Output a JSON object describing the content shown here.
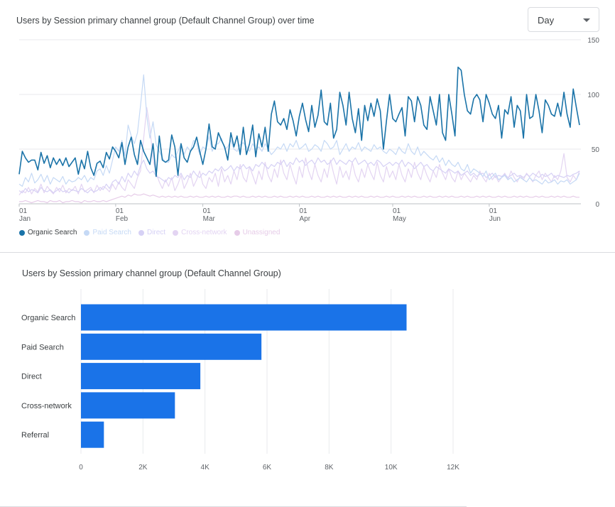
{
  "line_card": {
    "title": "Users by Session primary channel group (Default Channel Group) over time",
    "granularity_label": "Day"
  },
  "bar_card": {
    "title": "Users by Session primary channel group (Default Channel Group)"
  },
  "chart_data": [
    {
      "type": "line",
      "title": "Users by Session primary channel group (Default Channel Group) over time",
      "x_tick_labels": [
        {
          "day": "01",
          "month": "Jan"
        },
        {
          "day": "01",
          "month": "Feb"
        },
        {
          "day": "01",
          "month": "Mar"
        },
        {
          "day": "01",
          "month": "Apr"
        },
        {
          "day": "01",
          "month": "May"
        },
        {
          "day": "01",
          "month": "Jun"
        }
      ],
      "x_tick_day_index": [
        0,
        31,
        59,
        90,
        120,
        151
      ],
      "y_ticks": [
        0,
        50,
        100,
        150
      ],
      "ylim": [
        0,
        150
      ],
      "day_count": 181,
      "grid": true,
      "legend_position": "bottom-left",
      "series": [
        {
          "name": "Organic Search",
          "color": "#1a73a8",
          "opacity": 1,
          "width": 1.6,
          "values": [
            27,
            48,
            42,
            38,
            40,
            40,
            31,
            47,
            37,
            44,
            33,
            42,
            36,
            41,
            35,
            42,
            34,
            38,
            42,
            27,
            40,
            32,
            48,
            33,
            26,
            37,
            39,
            33,
            47,
            41,
            52,
            48,
            42,
            56,
            36,
            52,
            61,
            45,
            36,
            58,
            48,
            42,
            36,
            55,
            25,
            62,
            40,
            38,
            40,
            63,
            52,
            26,
            55,
            42,
            38,
            48,
            52,
            61,
            48,
            36,
            50,
            73,
            52,
            50,
            65,
            58,
            52,
            40,
            65,
            52,
            62,
            45,
            70,
            45,
            55,
            72,
            43,
            64,
            52,
            70,
            48,
            82,
            94,
            75,
            72,
            78,
            68,
            86,
            76,
            62,
            80,
            92,
            77,
            66,
            90,
            70,
            81,
            104,
            75,
            72,
            92,
            60,
            68,
            102,
            90,
            72,
            102,
            78,
            65,
            87,
            58,
            90,
            76,
            92,
            80,
            96,
            85,
            50,
            76,
            100,
            78,
            75,
            82,
            88,
            62,
            98,
            94,
            75,
            98,
            90,
            72,
            68,
            98,
            85,
            72,
            100,
            65,
            58,
            100,
            82,
            62,
            125,
            122,
            100,
            85,
            82,
            96,
            100,
            95,
            75,
            100,
            92,
            82,
            78,
            90,
            60,
            86,
            82,
            98,
            70,
            90,
            85,
            60,
            100,
            78,
            80,
            100,
            85,
            65,
            95,
            90,
            82,
            80,
            92,
            80,
            102,
            82,
            70,
            105,
            88,
            72
          ]
        },
        {
          "name": "Paid Search",
          "color": "#c5d9f5",
          "opacity": 1,
          "width": 1.2,
          "values": [
            18,
            16,
            24,
            20,
            28,
            19,
            22,
            27,
            20,
            26,
            18,
            24,
            22,
            20,
            25,
            18,
            22,
            20,
            21,
            24,
            22,
            26,
            20,
            24,
            22,
            30,
            32,
            26,
            35,
            28,
            40,
            52,
            48,
            58,
            44,
            72,
            62,
            55,
            65,
            90,
            118,
            80,
            60,
            75,
            54,
            48,
            42,
            38,
            38,
            45,
            42,
            48,
            55,
            45,
            52,
            48,
            58,
            55,
            45,
            52,
            50,
            62,
            48,
            54,
            55,
            60,
            50,
            52,
            58,
            50,
            48,
            54,
            56,
            52,
            48,
            55,
            50,
            52,
            48,
            55,
            50,
            45,
            48,
            52,
            50,
            55,
            48,
            55,
            52,
            58,
            50,
            52,
            55,
            48,
            50,
            54,
            52,
            48,
            58,
            55,
            50,
            52,
            58,
            45,
            50,
            55,
            48,
            52,
            50,
            56,
            48,
            52,
            50,
            48,
            54,
            50,
            52,
            48,
            46,
            50,
            48,
            45,
            52,
            48,
            46,
            55,
            48,
            45,
            52,
            44,
            48,
            45,
            42,
            40,
            44,
            38,
            42,
            35,
            40,
            36,
            34,
            38,
            32,
            30,
            36,
            28,
            32,
            30,
            28,
            25,
            30,
            22,
            25,
            28,
            22,
            24,
            26,
            22,
            24,
            20,
            22,
            24,
            22,
            20,
            24,
            21,
            22,
            20,
            18,
            22,
            19,
            20,
            22,
            18,
            21,
            20,
            22,
            18,
            20,
            22,
            28
          ]
        },
        {
          "name": "Direct",
          "color": "#d6d1f5",
          "opacity": 1,
          "width": 1.2,
          "values": [
            12,
            10,
            14,
            11,
            13,
            12,
            10,
            15,
            12,
            11,
            13,
            10,
            12,
            14,
            11,
            12,
            10,
            13,
            12,
            11,
            14,
            12,
            10,
            13,
            11,
            12,
            15,
            13,
            18,
            14,
            20,
            22,
            18,
            25,
            20,
            28,
            24,
            30,
            26,
            35,
            40,
            32,
            28,
            30,
            25,
            24,
            22,
            20,
            24,
            22,
            26,
            24,
            28,
            22,
            26,
            24,
            30,
            26,
            24,
            28,
            26,
            30,
            28,
            32,
            30,
            34,
            30,
            32,
            35,
            30,
            34,
            32,
            36,
            32,
            34,
            30,
            36,
            34,
            38,
            35,
            32,
            36,
            34,
            38,
            36,
            40,
            34,
            38,
            36,
            42,
            38,
            40,
            35,
            38,
            40,
            36,
            42,
            38,
            40,
            36,
            38,
            42,
            36,
            40,
            38,
            36,
            40,
            38,
            42,
            36,
            38,
            40,
            36,
            38,
            35,
            40,
            38,
            34,
            36,
            38,
            35,
            38,
            36,
            40,
            34,
            38,
            36,
            32,
            35,
            38,
            34,
            36,
            32,
            30,
            34,
            32,
            30,
            28,
            32,
            30,
            28,
            30,
            26,
            28,
            30,
            26,
            28,
            25,
            27,
            28,
            24,
            26,
            28,
            24,
            26,
            25,
            27,
            24,
            26,
            28,
            25,
            26,
            24,
            27,
            25,
            28,
            26,
            24,
            27,
            25,
            26,
            28,
            24,
            26,
            25,
            24,
            26,
            25,
            27,
            28,
            30
          ]
        },
        {
          "name": "Cross-network",
          "color": "#e3d4f2",
          "opacity": 1,
          "width": 1.2,
          "values": [
            8,
            12,
            10,
            15,
            9,
            14,
            11,
            18,
            10,
            16,
            12,
            9,
            15,
            11,
            17,
            10,
            14,
            12,
            16,
            9,
            18,
            11,
            13,
            15,
            10,
            17,
            12,
            16,
            14,
            11,
            18,
            13,
            20,
            15,
            12,
            22,
            18,
            14,
            24,
            30,
            60,
            88,
            70,
            40,
            28,
            20,
            14,
            22,
            16,
            24,
            12,
            18,
            26,
            14,
            20,
            28,
            16,
            22,
            30,
            18,
            14,
            24,
            20,
            28,
            16,
            32,
            20,
            26,
            18,
            30,
            22,
            36,
            24,
            20,
            34,
            26,
            18,
            30,
            22,
            38,
            26,
            20,
            32,
            24,
            40,
            28,
            22,
            36,
            26,
            18,
            34,
            24,
            42,
            30,
            22,
            36,
            26,
            20,
            32,
            24,
            40,
            28,
            18,
            34,
            24,
            30,
            22,
            38,
            26,
            20,
            32,
            24,
            36,
            28,
            22,
            38,
            26,
            20,
            34,
            24,
            30,
            22,
            36,
            26,
            20,
            32,
            24,
            38,
            28,
            22,
            34,
            26,
            20,
            30,
            24,
            36,
            28,
            22,
            32,
            24,
            20,
            30,
            22,
            28,
            24,
            20,
            26,
            22,
            30,
            24,
            20,
            28,
            22,
            26,
            20,
            24,
            28,
            22,
            30,
            24,
            20,
            26,
            22,
            28,
            24,
            20,
            26,
            30,
            22,
            28,
            24,
            20,
            26,
            22,
            30,
            46,
            24,
            20,
            26,
            22,
            30
          ]
        },
        {
          "name": "Unassigned",
          "color": "#e6cce8",
          "opacity": 1,
          "width": 1.2,
          "values": [
            2,
            2,
            3,
            2,
            1,
            2,
            3,
            2,
            2,
            1,
            3,
            2,
            2,
            3,
            1,
            2,
            2,
            3,
            2,
            2,
            1,
            3,
            2,
            2,
            3,
            2,
            2,
            3,
            2,
            3,
            4,
            5,
            6,
            7,
            6,
            8,
            7,
            9,
            8,
            8,
            9,
            8,
            7,
            8,
            7,
            6,
            7,
            6,
            7,
            6,
            7,
            6,
            7,
            6,
            6,
            7,
            6,
            7,
            6,
            6,
            7,
            6,
            7,
            6,
            7,
            6,
            6,
            7,
            6,
            7,
            7,
            6,
            7,
            6,
            6,
            7,
            6,
            7,
            6,
            7,
            6,
            6,
            7,
            6,
            7,
            6,
            6,
            7,
            6,
            7,
            6,
            7,
            6,
            6,
            7,
            6,
            7,
            6,
            6,
            7,
            6,
            7,
            6,
            7,
            6,
            6,
            7,
            6,
            7,
            6,
            7,
            6,
            6,
            7,
            6,
            7,
            6,
            6,
            7,
            6,
            7,
            6,
            6,
            7,
            6,
            7,
            6,
            7,
            6,
            6,
            7,
            6,
            7,
            6,
            6,
            7,
            6,
            7,
            6,
            7,
            6,
            6,
            7,
            6,
            7,
            6,
            6,
            7,
            6,
            7,
            6,
            7,
            6,
            6,
            7,
            6,
            7,
            6,
            6,
            7,
            6,
            7,
            6,
            7,
            6,
            6,
            7,
            6,
            7,
            6,
            6,
            7,
            6,
            7,
            6,
            7,
            6,
            6,
            7,
            6,
            6
          ]
        }
      ]
    },
    {
      "type": "bar",
      "orientation": "horizontal",
      "title": "Users by Session primary channel group (Default Channel Group)",
      "categories": [
        "Organic Search",
        "Paid Search",
        "Direct",
        "Cross-network",
        "Referral"
      ],
      "values": [
        10500,
        5820,
        3850,
        3030,
        740
      ],
      "bar_color": "#1a73e8",
      "x_ticks": [
        0,
        2000,
        4000,
        6000,
        8000,
        10000,
        12000
      ],
      "x_tick_labels": [
        "0",
        "2K",
        "4K",
        "6K",
        "8K",
        "10K",
        "12K"
      ],
      "xlim": [
        0,
        12000
      ],
      "grid": true
    }
  ]
}
